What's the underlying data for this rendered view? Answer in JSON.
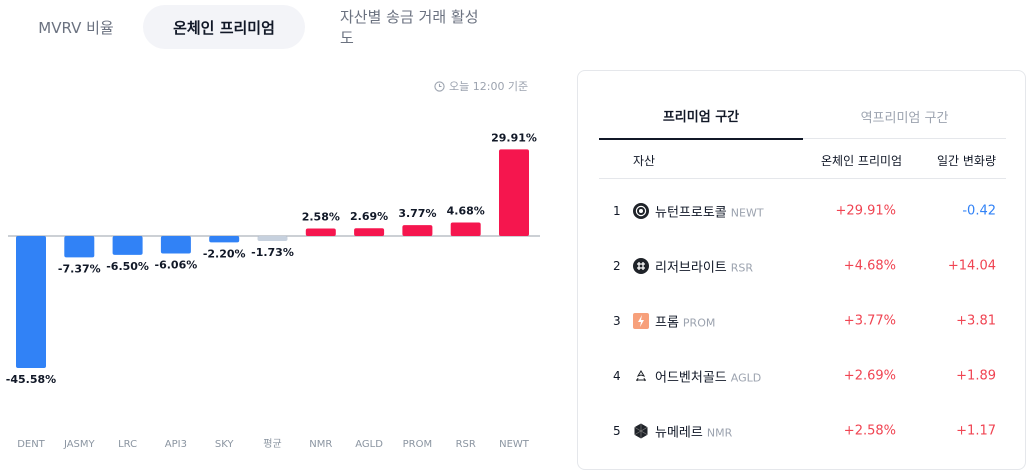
{
  "top_tabs": [
    {
      "label": "MVRV 비율",
      "active": false
    },
    {
      "label": "온체인 프리미엄",
      "active": true
    },
    {
      "label": "자산별 송금 거래 활성도",
      "active": false
    }
  ],
  "timestamp": "오늘 12:00 기준",
  "chart_data": {
    "type": "bar",
    "title": "",
    "categories": [
      "DENT",
      "JASMY",
      "LRC",
      "API3",
      "SKY",
      "평균",
      "NMR",
      "AGLD",
      "PROM",
      "RSR",
      "NEWT"
    ],
    "values": [
      -45.58,
      -7.37,
      -6.5,
      -6.06,
      -2.2,
      -1.73,
      2.58,
      2.69,
      3.77,
      4.68,
      29.91
    ],
    "value_labels": [
      "-45.58%",
      "-7.37%",
      "-6.50%",
      "-6.06%",
      "-2.20%",
      "-1.73%",
      "2.58%",
      "2.69%",
      "3.77%",
      "4.68%",
      "29.91%"
    ],
    "colors": {
      "positive": "#f5164e",
      "negative": "#3182f6",
      "average": "#c7d1de"
    },
    "average_category": "평균",
    "grid": false,
    "legend": "none"
  },
  "panel": {
    "tabs": [
      {
        "label": "프리미엄 구간",
        "active": true
      },
      {
        "label": "역프리미엄 구간",
        "active": false
      }
    ],
    "headers": {
      "asset": "자산",
      "premium": "온체인 프리미엄",
      "change": "일간 변화량"
    },
    "rows": [
      {
        "rank": "1",
        "name": "뉴턴프로토콜",
        "ticker": "NEWT",
        "premium": "+29.91%",
        "change": "-0.42",
        "change_dir": "neg",
        "icon": "newt-icon"
      },
      {
        "rank": "2",
        "name": "리저브라이트",
        "ticker": "RSR",
        "premium": "+4.68%",
        "change": "+14.04",
        "change_dir": "pos",
        "icon": "rsr-icon"
      },
      {
        "rank": "3",
        "name": "프롬",
        "ticker": "PROM",
        "premium": "+3.77%",
        "change": "+3.81",
        "change_dir": "pos",
        "icon": "prom-icon"
      },
      {
        "rank": "4",
        "name": "어드벤처골드",
        "ticker": "AGLD",
        "premium": "+2.69%",
        "change": "+1.89",
        "change_dir": "pos",
        "icon": "agld-icon"
      },
      {
        "rank": "5",
        "name": "뉴메레르",
        "ticker": "NMR",
        "premium": "+2.58%",
        "change": "+1.17",
        "change_dir": "pos",
        "icon": "nmr-icon"
      }
    ]
  }
}
